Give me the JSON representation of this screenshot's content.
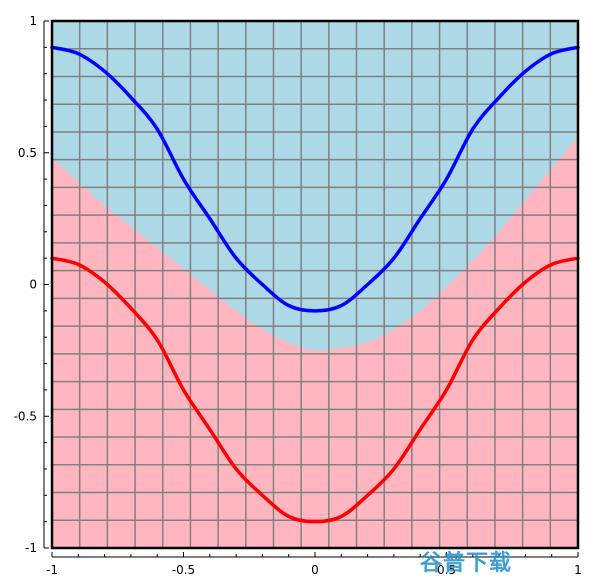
{
  "chart_data": {
    "type": "area",
    "title": "",
    "xlabel": "",
    "ylabel": "",
    "xlim": [
      -1,
      1
    ],
    "ylim": [
      -1,
      1
    ],
    "grid": true,
    "grid_divisions": 19,
    "x_ticks": [
      {
        "value": -1,
        "label": "-1"
      },
      {
        "value": -0.5,
        "label": "-0.5"
      },
      {
        "value": 0,
        "label": "0"
      },
      {
        "value": 0.5,
        "label": "0.5"
      },
      {
        "value": 1,
        "label": "1"
      }
    ],
    "y_ticks": [
      {
        "value": 1,
        "label": "1"
      },
      {
        "value": 0.5,
        "label": "0.5"
      },
      {
        "value": 0,
        "label": "0"
      },
      {
        "value": -0.5,
        "label": "-0.5"
      },
      {
        "value": -1,
        "label": "-1"
      }
    ],
    "regions": [
      {
        "color": "#add8e6",
        "description": "above boundary"
      },
      {
        "color": "#ffb6c1",
        "description": "below boundary"
      }
    ],
    "boundary": {
      "x": [
        -1,
        -0.9,
        -0.8,
        -0.7,
        -0.6,
        -0.5,
        -0.4,
        -0.3,
        -0.2,
        -0.1,
        0,
        0.1,
        0.2,
        0.3,
        0.4,
        0.5,
        0.6,
        0.7,
        0.8,
        0.9,
        1
      ],
      "y": [
        0.48,
        0.39,
        0.3,
        0.22,
        0.14,
        0.06,
        -0.02,
        -0.1,
        -0.17,
        -0.22,
        -0.25,
        -0.24,
        -0.22,
        -0.17,
        -0.1,
        -0.01,
        0.09,
        0.2,
        0.32,
        0.44,
        0.56
      ]
    },
    "series": [
      {
        "color": "#0000ff",
        "x": [
          -1,
          -0.9,
          -0.8,
          -0.7,
          -0.6,
          -0.5,
          -0.4,
          -0.3,
          -0.2,
          -0.1,
          0,
          0.1,
          0.2,
          0.3,
          0.4,
          0.5,
          0.6,
          0.7,
          0.8,
          0.9,
          1
        ],
        "y": [
          0.9,
          0.876,
          0.809,
          0.71,
          0.59,
          0.4,
          0.25,
          0.1,
          0.0,
          -0.08,
          -0.1,
          -0.08,
          0.0,
          0.1,
          0.25,
          0.4,
          0.59,
          0.71,
          0.809,
          0.876,
          0.9
        ]
      },
      {
        "color": "#ff0000",
        "x": [
          -1,
          -0.9,
          -0.8,
          -0.7,
          -0.6,
          -0.5,
          -0.4,
          -0.3,
          -0.2,
          -0.1,
          0,
          0.1,
          0.2,
          0.3,
          0.4,
          0.5,
          0.6,
          0.7,
          0.8,
          0.9,
          1
        ],
        "y": [
          0.1,
          0.076,
          0.009,
          -0.09,
          -0.21,
          -0.4,
          -0.55,
          -0.7,
          -0.8,
          -0.88,
          -0.9,
          -0.88,
          -0.8,
          -0.7,
          -0.55,
          -0.4,
          -0.21,
          -0.09,
          0.009,
          0.076,
          0.1
        ]
      }
    ]
  },
  "watermark": {
    "text": "谷普下载",
    "color": "#1f8fc9"
  }
}
